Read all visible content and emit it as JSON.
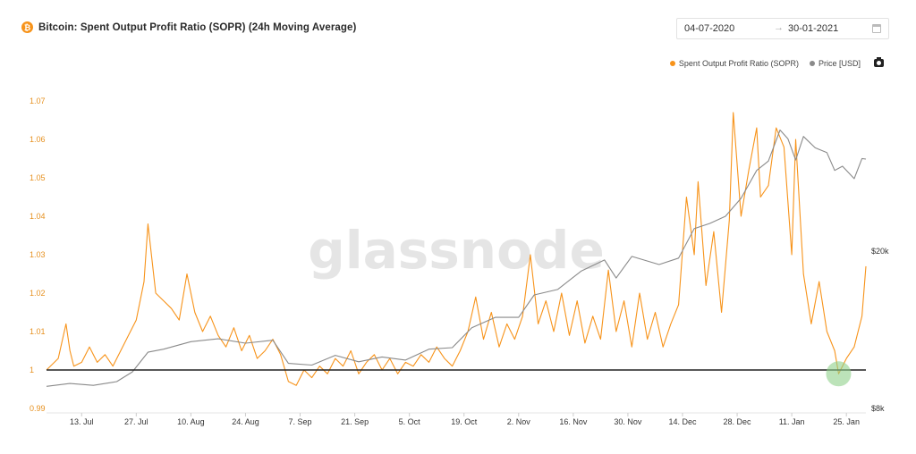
{
  "header": {
    "btc_icon_glyph": "₿",
    "title": "Bitcoin: Spent Output Profit Ratio (SOPR) (24h Moving Average)"
  },
  "date_range": {
    "from": "04-07-2020",
    "arrow": "→",
    "to": "30-01-2021"
  },
  "legend": {
    "items": [
      {
        "label": "Spent Output Profit Ratio (SOPR)",
        "color": "#f7931a"
      },
      {
        "label": "Price [USD]",
        "color": "#8a8a8a"
      }
    ]
  },
  "watermark": "glassnode",
  "chart_data": {
    "type": "line",
    "title": "Bitcoin: Spent Output Profit Ratio (SOPR) (24h Moving Average)",
    "x": {
      "start": "2020-07-04",
      "end": "2021-01-30",
      "tick_labels": [
        "13. Jul",
        "27. Jul",
        "10. Aug",
        "24. Aug",
        "7. Sep",
        "21. Sep",
        "5. Oct",
        "19. Oct",
        "2. Nov",
        "16. Nov",
        "30. Nov",
        "14. Dec",
        "28. Dec",
        "11. Jan",
        "25. Jan"
      ],
      "tick_dates": [
        "2020-07-13",
        "2020-07-27",
        "2020-08-10",
        "2020-08-24",
        "2020-09-07",
        "2020-09-21",
        "2020-10-05",
        "2020-10-19",
        "2020-11-02",
        "2020-11-16",
        "2020-11-30",
        "2020-12-14",
        "2020-12-28",
        "2021-01-11",
        "2021-01-25"
      ]
    },
    "y_left": {
      "ylim": [
        0.99,
        1.07
      ],
      "tick_values": [
        0.99,
        1,
        1.01,
        1.02,
        1.03,
        1.04,
        1.05,
        1.06,
        1.07
      ],
      "tick_labels": [
        "0.99",
        "1",
        "1.01",
        "1.02",
        "1.03",
        "1.04",
        "1.05",
        "1.06",
        "1.07"
      ],
      "color": "#e6901f"
    },
    "y_right": {
      "scale": "log",
      "tick_values": [
        8000,
        20000
      ],
      "tick_labels": [
        "$8k",
        "$20k"
      ]
    },
    "reference_line": {
      "value": 1,
      "color": "#222222"
    },
    "highlight": {
      "date": "2021-01-23",
      "value": 0.999,
      "color": "#8fd18a"
    },
    "legend_position": "top-right",
    "grid": false,
    "series": [
      {
        "name": "Spent Output Profit Ratio (SOPR)",
        "axis": "left",
        "color": "#f7931a",
        "points": [
          [
            "2020-07-04",
            1.0
          ],
          [
            "2020-07-07",
            1.003
          ],
          [
            "2020-07-09",
            1.012
          ],
          [
            "2020-07-10",
            1.005
          ],
          [
            "2020-07-11",
            1.001
          ],
          [
            "2020-07-13",
            1.002
          ],
          [
            "2020-07-15",
            1.006
          ],
          [
            "2020-07-17",
            1.002
          ],
          [
            "2020-07-19",
            1.004
          ],
          [
            "2020-07-21",
            1.001
          ],
          [
            "2020-07-23",
            1.005
          ],
          [
            "2020-07-25",
            1.009
          ],
          [
            "2020-07-27",
            1.013
          ],
          [
            "2020-07-29",
            1.023
          ],
          [
            "2020-07-30",
            1.038
          ],
          [
            "2020-08-01",
            1.02
          ],
          [
            "2020-08-03",
            1.018
          ],
          [
            "2020-08-05",
            1.016
          ],
          [
            "2020-08-07",
            1.013
          ],
          [
            "2020-08-09",
            1.025
          ],
          [
            "2020-08-11",
            1.015
          ],
          [
            "2020-08-13",
            1.01
          ],
          [
            "2020-08-15",
            1.014
          ],
          [
            "2020-08-17",
            1.009
          ],
          [
            "2020-08-19",
            1.006
          ],
          [
            "2020-08-21",
            1.011
          ],
          [
            "2020-08-23",
            1.005
          ],
          [
            "2020-08-25",
            1.009
          ],
          [
            "2020-08-27",
            1.003
          ],
          [
            "2020-08-29",
            1.005
          ],
          [
            "2020-08-31",
            1.008
          ],
          [
            "2020-09-02",
            1.004
          ],
          [
            "2020-09-04",
            0.997
          ],
          [
            "2020-09-06",
            0.996
          ],
          [
            "2020-09-08",
            1.0
          ],
          [
            "2020-09-10",
            0.998
          ],
          [
            "2020-09-12",
            1.001
          ],
          [
            "2020-09-14",
            0.999
          ],
          [
            "2020-09-16",
            1.003
          ],
          [
            "2020-09-18",
            1.001
          ],
          [
            "2020-09-20",
            1.005
          ],
          [
            "2020-09-22",
            0.999
          ],
          [
            "2020-09-24",
            1.002
          ],
          [
            "2020-09-26",
            1.004
          ],
          [
            "2020-09-28",
            1.0
          ],
          [
            "2020-09-30",
            1.003
          ],
          [
            "2020-10-02",
            0.999
          ],
          [
            "2020-10-04",
            1.002
          ],
          [
            "2020-10-06",
            1.001
          ],
          [
            "2020-10-08",
            1.004
          ],
          [
            "2020-10-10",
            1.002
          ],
          [
            "2020-10-12",
            1.006
          ],
          [
            "2020-10-14",
            1.003
          ],
          [
            "2020-10-16",
            1.001
          ],
          [
            "2020-10-18",
            1.005
          ],
          [
            "2020-10-20",
            1.01
          ],
          [
            "2020-10-22",
            1.019
          ],
          [
            "2020-10-24",
            1.008
          ],
          [
            "2020-10-26",
            1.015
          ],
          [
            "2020-10-28",
            1.006
          ],
          [
            "2020-10-30",
            1.012
          ],
          [
            "2020-11-01",
            1.008
          ],
          [
            "2020-11-03",
            1.014
          ],
          [
            "2020-11-05",
            1.03
          ],
          [
            "2020-11-07",
            1.012
          ],
          [
            "2020-11-09",
            1.018
          ],
          [
            "2020-11-11",
            1.01
          ],
          [
            "2020-11-13",
            1.02
          ],
          [
            "2020-11-15",
            1.009
          ],
          [
            "2020-11-17",
            1.018
          ],
          [
            "2020-11-19",
            1.007
          ],
          [
            "2020-11-21",
            1.014
          ],
          [
            "2020-11-23",
            1.008
          ],
          [
            "2020-11-25",
            1.026
          ],
          [
            "2020-11-27",
            1.01
          ],
          [
            "2020-11-29",
            1.018
          ],
          [
            "2020-12-01",
            1.006
          ],
          [
            "2020-12-03",
            1.02
          ],
          [
            "2020-12-05",
            1.008
          ],
          [
            "2020-12-07",
            1.015
          ],
          [
            "2020-12-09",
            1.006
          ],
          [
            "2020-12-11",
            1.012
          ],
          [
            "2020-12-13",
            1.017
          ],
          [
            "2020-12-15",
            1.045
          ],
          [
            "2020-12-17",
            1.03
          ],
          [
            "2020-12-18",
            1.049
          ],
          [
            "2020-12-20",
            1.022
          ],
          [
            "2020-12-22",
            1.036
          ],
          [
            "2020-12-24",
            1.015
          ],
          [
            "2020-12-26",
            1.039
          ],
          [
            "2020-12-27",
            1.067
          ],
          [
            "2020-12-29",
            1.04
          ],
          [
            "2020-12-31",
            1.052
          ],
          [
            "2021-01-02",
            1.063
          ],
          [
            "2021-01-03",
            1.045
          ],
          [
            "2021-01-05",
            1.048
          ],
          [
            "2021-01-07",
            1.063
          ],
          [
            "2021-01-09",
            1.058
          ],
          [
            "2021-01-11",
            1.03
          ],
          [
            "2021-01-12",
            1.06
          ],
          [
            "2021-01-14",
            1.025
          ],
          [
            "2021-01-16",
            1.012
          ],
          [
            "2021-01-18",
            1.023
          ],
          [
            "2021-01-20",
            1.01
          ],
          [
            "2021-01-22",
            1.005
          ],
          [
            "2021-01-23",
            0.999
          ],
          [
            "2021-01-25",
            1.003
          ],
          [
            "2021-01-27",
            1.006
          ],
          [
            "2021-01-29",
            1.014
          ],
          [
            "2021-01-30",
            1.027
          ]
        ]
      },
      {
        "name": "Price [USD]",
        "axis": "right",
        "color": "#8a8a8a",
        "points": [
          [
            "2020-07-04",
            9100
          ],
          [
            "2020-07-10",
            9250
          ],
          [
            "2020-07-16",
            9150
          ],
          [
            "2020-07-22",
            9350
          ],
          [
            "2020-07-26",
            9900
          ],
          [
            "2020-07-30",
            11100
          ],
          [
            "2020-08-03",
            11300
          ],
          [
            "2020-08-10",
            11800
          ],
          [
            "2020-08-17",
            12000
          ],
          [
            "2020-08-24",
            11700
          ],
          [
            "2020-08-31",
            11900
          ],
          [
            "2020-09-04",
            10400
          ],
          [
            "2020-09-10",
            10300
          ],
          [
            "2020-09-16",
            10900
          ],
          [
            "2020-09-22",
            10500
          ],
          [
            "2020-09-28",
            10800
          ],
          [
            "2020-10-04",
            10600
          ],
          [
            "2020-10-10",
            11300
          ],
          [
            "2020-10-16",
            11400
          ],
          [
            "2020-10-21",
            12800
          ],
          [
            "2020-10-27",
            13600
          ],
          [
            "2020-11-02",
            13600
          ],
          [
            "2020-11-06",
            15500
          ],
          [
            "2020-11-12",
            16000
          ],
          [
            "2020-11-18",
            17800
          ],
          [
            "2020-11-24",
            19000
          ],
          [
            "2020-11-27",
            17100
          ],
          [
            "2020-12-01",
            19400
          ],
          [
            "2020-12-08",
            18500
          ],
          [
            "2020-12-13",
            19200
          ],
          [
            "2020-12-17",
            22800
          ],
          [
            "2020-12-21",
            23500
          ],
          [
            "2020-12-25",
            24500
          ],
          [
            "2020-12-29",
            27200
          ],
          [
            "2021-01-02",
            32000
          ],
          [
            "2021-01-05",
            33800
          ],
          [
            "2021-01-08",
            40500
          ],
          [
            "2021-01-10",
            38500
          ],
          [
            "2021-01-12",
            34000
          ],
          [
            "2021-01-14",
            39000
          ],
          [
            "2021-01-17",
            36500
          ],
          [
            "2021-01-20",
            35500
          ],
          [
            "2021-01-22",
            32000
          ],
          [
            "2021-01-24",
            32800
          ],
          [
            "2021-01-27",
            30500
          ],
          [
            "2021-01-29",
            34300
          ],
          [
            "2021-01-30",
            34200
          ]
        ]
      }
    ]
  }
}
